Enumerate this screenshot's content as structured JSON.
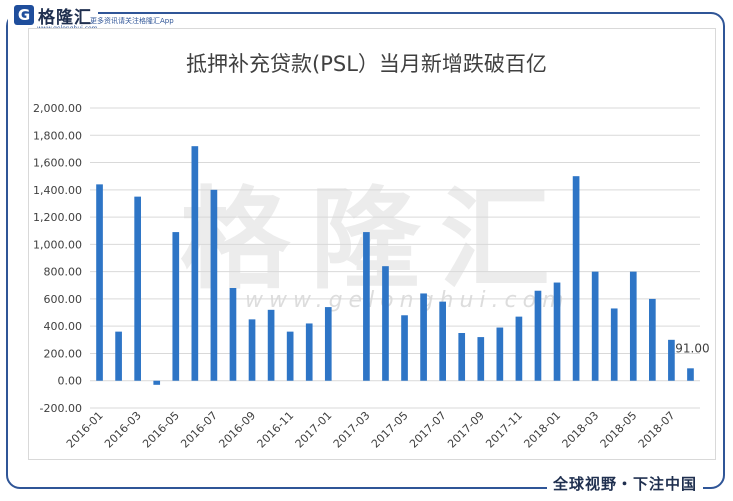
{
  "branding": {
    "logo_letter": "G",
    "logo_name": "格隆汇",
    "logo_url": "www.gelonghui.com",
    "tagline": "更多资讯请关注格隆汇App",
    "slogan": "全球视野・下注中国"
  },
  "watermark": {
    "text": "格隆汇",
    "url": "www.gelonghui.com"
  },
  "colors": {
    "bar": "#2e75c6",
    "grid": "#d9d9d9",
    "frame": "#2f5597"
  },
  "chart_data": {
    "type": "bar",
    "title": "抵押补充贷款(PSL）当月新增跌破百亿",
    "xlabel": "",
    "ylabel": "",
    "ylim": [
      -200,
      2000
    ],
    "yticks": [
      "2,000.00",
      "1,800.00",
      "1,600.00",
      "1,400.00",
      "1,200.00",
      "1,000.00",
      "800.00",
      "600.00",
      "400.00",
      "200.00",
      "0.00",
      "-200.00"
    ],
    "ytick_values": [
      2000,
      1800,
      1600,
      1400,
      1200,
      1000,
      800,
      600,
      400,
      200,
      0,
      -200
    ],
    "grid": true,
    "categories": [
      "2016-01",
      "2016-02",
      "2016-03",
      "2016-04",
      "2016-05",
      "2016-06",
      "2016-07",
      "2016-08",
      "2016-09",
      "2016-10",
      "2016-11",
      "2016-12",
      "2017-01",
      "2017-02",
      "2017-03",
      "2017-04",
      "2017-05",
      "2017-06",
      "2017-07",
      "2017-08",
      "2017-09",
      "2017-10",
      "2017-11",
      "2017-12",
      "2018-01",
      "2018-02",
      "2018-03",
      "2018-04",
      "2018-05",
      "2018-06",
      "2018-07",
      "2018-08"
    ],
    "xtick_labels": [
      "2016-01",
      "2016-03",
      "2016-05",
      "2016-07",
      "2016-09",
      "2016-11",
      "2017-01",
      "2017-03",
      "2017-05",
      "2017-07",
      "2017-09",
      "2017-11",
      "2018-01",
      "2018-03",
      "2018-05",
      "2018-07"
    ],
    "values": [
      1440,
      360,
      1350,
      -30,
      1090,
      1720,
      1400,
      680,
      450,
      520,
      360,
      420,
      540,
      null,
      1090,
      840,
      480,
      640,
      580,
      350,
      320,
      390,
      470,
      660,
      720,
      1500,
      800,
      530,
      800,
      600,
      300,
      91
    ],
    "annotations": [
      {
        "category": "2018-08",
        "text": "91.00"
      }
    ]
  }
}
